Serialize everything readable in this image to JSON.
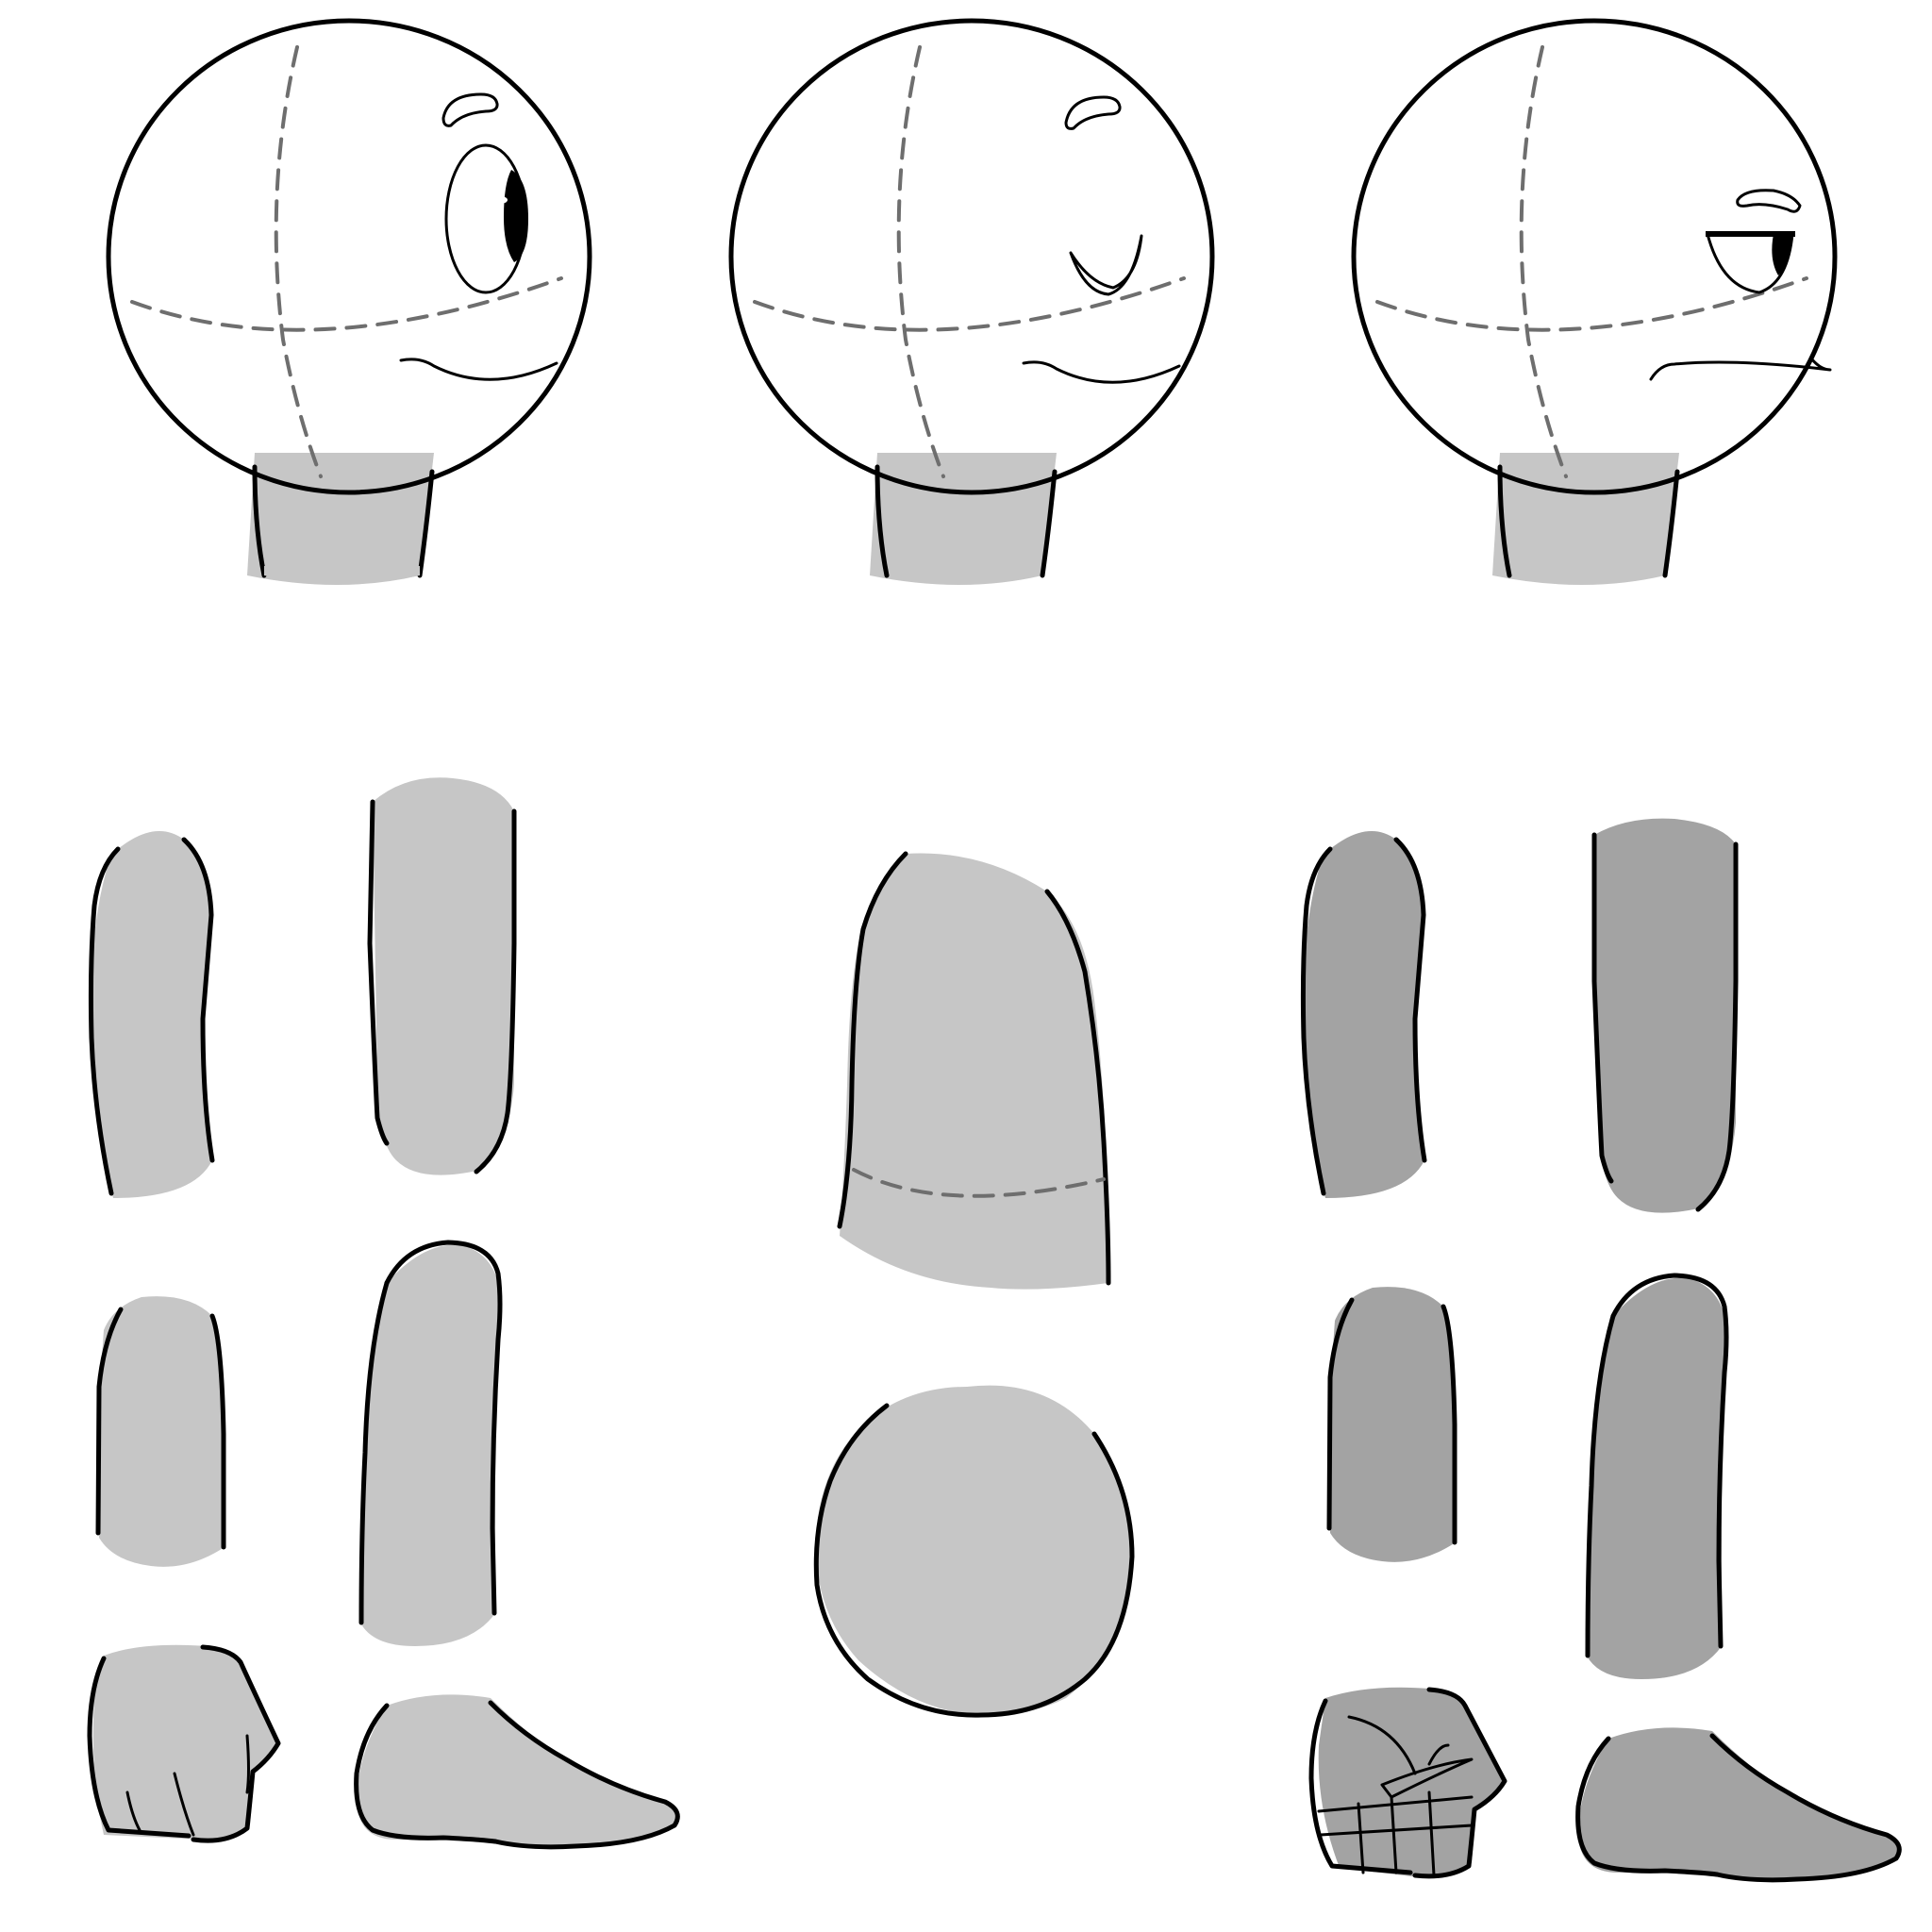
{
  "colors": {
    "background": "#ffffff",
    "skin_light": "#c6c6c6",
    "skin_dark": "#a3a3a3",
    "outline": "#000000",
    "guide": "#6e6e6e",
    "eye_white": "#e9e9e9",
    "pupil": "#000000"
  },
  "heads": [
    {
      "expression": "open-eye-smile"
    },
    {
      "expression": "closed-eye-smile"
    },
    {
      "expression": "half-lidded-frown"
    }
  ],
  "parts": {
    "left_limbs": [
      "upper-arm",
      "thigh",
      "forearm",
      "shin",
      "fist",
      "foot"
    ],
    "center": [
      "torso",
      "pelvis"
    ],
    "right_limbs_shaded": [
      "upper-arm",
      "thigh",
      "forearm",
      "shin",
      "clenched-fist",
      "foot"
    ]
  }
}
